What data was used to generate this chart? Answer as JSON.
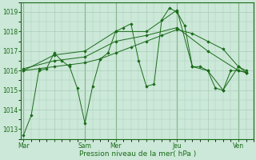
{
  "background_color": "#cce8d8",
  "grid_color": "#aaccb8",
  "line_color": "#1a6b1a",
  "marker_color": "#1a6b1a",
  "xlabel": "Pression niveau de la mer( hPa )",
  "ylim": [
    1012.5,
    1019.5
  ],
  "yticks": [
    1013,
    1014,
    1015,
    1016,
    1017,
    1018,
    1019
  ],
  "day_labels": [
    "Mar",
    "",
    "Sam",
    "Mer",
    "",
    "Jeu",
    "",
    "Ven"
  ],
  "day_positions": [
    0,
    24,
    48,
    72,
    96,
    120,
    144,
    168
  ],
  "vline_positions": [
    0,
    48,
    72,
    120,
    168
  ],
  "series": [
    {
      "x": [
        0,
        6,
        12,
        18,
        24,
        30,
        36,
        42,
        48,
        54,
        60,
        66,
        72,
        78,
        84,
        90,
        96,
        102,
        108,
        114,
        120,
        126,
        132,
        138,
        144,
        150,
        156,
        162,
        168,
        174
      ],
      "y": [
        1012.7,
        1013.7,
        1016.0,
        1016.1,
        1016.9,
        1016.5,
        1016.2,
        1015.1,
        1013.3,
        1015.2,
        1016.6,
        1016.9,
        1018.0,
        1018.2,
        1018.4,
        1016.5,
        1015.2,
        1015.3,
        1018.6,
        1019.2,
        1019.0,
        1018.3,
        1016.2,
        1016.2,
        1016.0,
        1015.1,
        1015.0,
        1016.0,
        1016.0,
        1015.9
      ]
    },
    {
      "x": [
        0,
        12,
        24,
        36,
        48,
        60,
        72,
        84,
        96,
        108,
        120,
        132,
        144,
        156,
        168,
        174
      ],
      "y": [
        1016.0,
        1016.1,
        1016.2,
        1016.3,
        1016.4,
        1016.6,
        1016.9,
        1017.2,
        1017.5,
        1017.8,
        1018.1,
        1017.9,
        1017.5,
        1017.1,
        1016.2,
        1016.0
      ]
    },
    {
      "x": [
        0,
        24,
        48,
        72,
        96,
        120,
        144,
        168,
        174
      ],
      "y": [
        1016.1,
        1016.5,
        1016.7,
        1017.5,
        1017.8,
        1018.2,
        1017.0,
        1016.0,
        1015.9
      ]
    },
    {
      "x": [
        0,
        24,
        48,
        72,
        96,
        120,
        132,
        144,
        156,
        168,
        174
      ],
      "y": [
        1016.0,
        1016.8,
        1017.0,
        1018.0,
        1018.0,
        1019.1,
        1016.2,
        1016.0,
        1015.0,
        1016.2,
        1015.9
      ]
    }
  ]
}
